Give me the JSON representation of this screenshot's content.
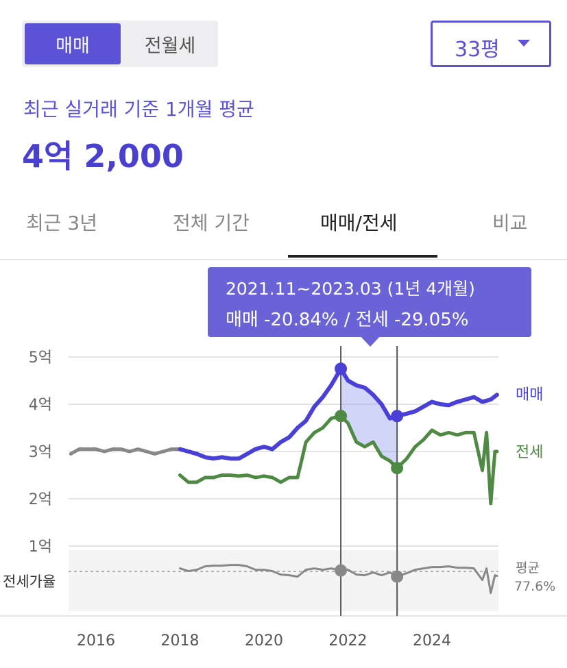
{
  "toggle": {
    "selected": "매매",
    "other": "전월세"
  },
  "size_select": {
    "value": "33평"
  },
  "summary": {
    "subtitle": "최근 실거래 기준 1개월 평균",
    "price": "4억 2,000"
  },
  "tabs": [
    {
      "label": "최근 3년",
      "active": false
    },
    {
      "label": "전체 기간",
      "active": false
    },
    {
      "label": "매매/전세",
      "active": true
    },
    {
      "label": "비교",
      "active": false
    }
  ],
  "tooltip": {
    "line1": "2021.11~2023.03 (1년 4개월)",
    "line2": "매매 -20.84%  /  전세 -29.05%"
  },
  "colors": {
    "accent": "#5b52d6",
    "sale": "#4a40d8",
    "jeonse": "#4f8a44",
    "ratio": "#888888",
    "early": "#888888"
  },
  "chart_data": {
    "type": "line",
    "x_ticks": [
      "2016",
      "2018",
      "2020",
      "2022",
      "2024"
    ],
    "y_ticks": [
      "1억",
      "2억",
      "3억",
      "4억",
      "5억"
    ],
    "ylim_eok": [
      0.4,
      5.2
    ],
    "xlim_year": [
      2015.4,
      2025.8
    ],
    "series_labels": {
      "sale": "매매",
      "jeonse": "전세"
    },
    "ratio_label": "전세가율",
    "ratio_avg_label": "평균",
    "ratio_avg_value": "77.6%",
    "ratio_avg_pct": 77.6,
    "highlight": {
      "start": 2021.83,
      "end": 2023.17,
      "sale_start": 4.75,
      "sale_end": 3.75,
      "jeonse_start": 3.75,
      "jeonse_end": 2.65
    },
    "sale_early": [
      [
        2015.4,
        2.95
      ],
      [
        2015.6,
        3.05
      ],
      [
        2015.8,
        3.05
      ],
      [
        2016.0,
        3.05
      ],
      [
        2016.2,
        3.0
      ],
      [
        2016.4,
        3.05
      ],
      [
        2016.6,
        3.05
      ],
      [
        2016.8,
        3.0
      ],
      [
        2017.0,
        3.05
      ],
      [
        2017.2,
        3.0
      ],
      [
        2017.4,
        2.95
      ],
      [
        2017.6,
        3.0
      ],
      [
        2017.8,
        3.05
      ],
      [
        2018.0,
        3.05
      ]
    ],
    "sale": [
      [
        2018.0,
        3.05
      ],
      [
        2018.2,
        3.0
      ],
      [
        2018.4,
        2.95
      ],
      [
        2018.6,
        2.88
      ],
      [
        2018.8,
        2.85
      ],
      [
        2019.0,
        2.88
      ],
      [
        2019.2,
        2.85
      ],
      [
        2019.4,
        2.85
      ],
      [
        2019.6,
        2.95
      ],
      [
        2019.8,
        3.05
      ],
      [
        2020.0,
        3.1
      ],
      [
        2020.2,
        3.05
      ],
      [
        2020.4,
        3.2
      ],
      [
        2020.6,
        3.3
      ],
      [
        2020.8,
        3.5
      ],
      [
        2021.0,
        3.65
      ],
      [
        2021.2,
        3.95
      ],
      [
        2021.4,
        4.15
      ],
      [
        2021.6,
        4.4
      ],
      [
        2021.83,
        4.75
      ],
      [
        2022.0,
        4.5
      ],
      [
        2022.2,
        4.4
      ],
      [
        2022.4,
        4.35
      ],
      [
        2022.6,
        4.2
      ],
      [
        2022.8,
        4.0
      ],
      [
        2023.0,
        3.7
      ],
      [
        2023.17,
        3.75
      ],
      [
        2023.4,
        3.8
      ],
      [
        2023.6,
        3.85
      ],
      [
        2023.8,
        3.95
      ],
      [
        2024.0,
        4.05
      ],
      [
        2024.2,
        4.0
      ],
      [
        2024.4,
        3.98
      ],
      [
        2024.6,
        4.05
      ],
      [
        2024.8,
        4.1
      ],
      [
        2025.0,
        4.15
      ],
      [
        2025.2,
        4.05
      ],
      [
        2025.4,
        4.1
      ],
      [
        2025.55,
        4.2
      ]
    ],
    "jeonse": [
      [
        2018.0,
        2.5
      ],
      [
        2018.2,
        2.35
      ],
      [
        2018.4,
        2.35
      ],
      [
        2018.6,
        2.45
      ],
      [
        2018.8,
        2.45
      ],
      [
        2019.0,
        2.5
      ],
      [
        2019.2,
        2.5
      ],
      [
        2019.4,
        2.48
      ],
      [
        2019.6,
        2.5
      ],
      [
        2019.8,
        2.45
      ],
      [
        2020.0,
        2.48
      ],
      [
        2020.2,
        2.45
      ],
      [
        2020.4,
        2.35
      ],
      [
        2020.6,
        2.45
      ],
      [
        2020.8,
        2.45
      ],
      [
        2021.0,
        3.2
      ],
      [
        2021.2,
        3.4
      ],
      [
        2021.4,
        3.5
      ],
      [
        2021.6,
        3.7
      ],
      [
        2021.83,
        3.75
      ],
      [
        2022.0,
        3.6
      ],
      [
        2022.2,
        3.2
      ],
      [
        2022.4,
        3.1
      ],
      [
        2022.6,
        3.2
      ],
      [
        2022.8,
        2.9
      ],
      [
        2023.0,
        2.8
      ],
      [
        2023.17,
        2.65
      ],
      [
        2023.4,
        2.85
      ],
      [
        2023.6,
        3.1
      ],
      [
        2023.8,
        3.25
      ],
      [
        2024.0,
        3.45
      ],
      [
        2024.2,
        3.35
      ],
      [
        2024.4,
        3.4
      ],
      [
        2024.6,
        3.35
      ],
      [
        2024.8,
        3.4
      ],
      [
        2025.0,
        3.4
      ],
      [
        2025.2,
        2.6
      ],
      [
        2025.3,
        3.4
      ],
      [
        2025.4,
        1.9
      ],
      [
        2025.5,
        3.0
      ],
      [
        2025.55,
        3.0
      ]
    ],
    "ratio": [
      [
        2018.0,
        82
      ],
      [
        2018.2,
        78
      ],
      [
        2018.4,
        80
      ],
      [
        2018.6,
        85
      ],
      [
        2018.8,
        86
      ],
      [
        2019.0,
        86
      ],
      [
        2019.2,
        87
      ],
      [
        2019.4,
        87
      ],
      [
        2019.6,
        85
      ],
      [
        2019.8,
        80
      ],
      [
        2020.0,
        80
      ],
      [
        2020.2,
        78
      ],
      [
        2020.4,
        73
      ],
      [
        2020.6,
        72
      ],
      [
        2020.8,
        70
      ],
      [
        2021.0,
        80
      ],
      [
        2021.2,
        82
      ],
      [
        2021.4,
        80
      ],
      [
        2021.6,
        82
      ],
      [
        2021.83,
        79
      ],
      [
        2022.0,
        80
      ],
      [
        2022.2,
        73
      ],
      [
        2022.4,
        72
      ],
      [
        2022.6,
        76
      ],
      [
        2022.8,
        72
      ],
      [
        2023.0,
        76
      ],
      [
        2023.17,
        70
      ],
      [
        2023.4,
        75
      ],
      [
        2023.6,
        80
      ],
      [
        2023.8,
        82
      ],
      [
        2024.0,
        84
      ],
      [
        2024.2,
        84
      ],
      [
        2024.4,
        85
      ],
      [
        2024.6,
        83
      ],
      [
        2024.8,
        83
      ],
      [
        2025.0,
        82
      ],
      [
        2025.2,
        65
      ],
      [
        2025.3,
        82
      ],
      [
        2025.4,
        46
      ],
      [
        2025.5,
        72
      ],
      [
        2025.55,
        71
      ]
    ]
  }
}
